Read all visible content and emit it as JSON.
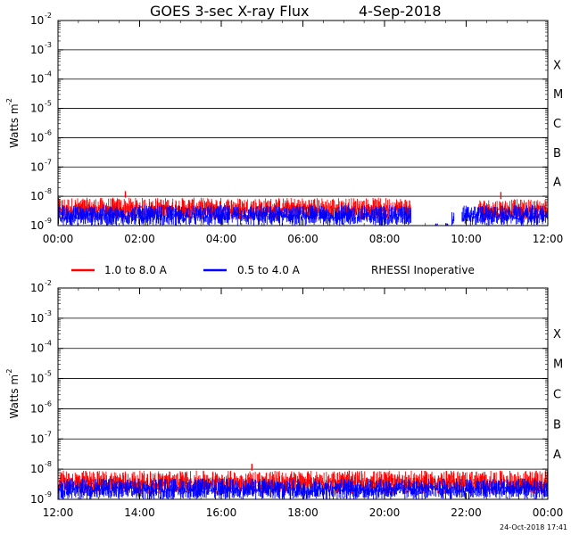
{
  "title": "GOES 3-sec X-ray Flux",
  "date": "4-Sep-2018",
  "timestamp": "24-Oct-2018 17:41",
  "legend": [
    {
      "label": "1.0 to 8.0 A",
      "color": "#ff0000"
    },
    {
      "label": "0.5 to 4.0 A",
      "color": "#0000ff"
    }
  ],
  "status_note": "RHESSI Inoperative",
  "colors": {
    "long_channel": "#ff0000",
    "short_channel": "#0000ff",
    "gridline": "#000000",
    "background": "#ffffff"
  },
  "chart_data": [
    {
      "type": "line",
      "title": "GOES 3-sec X-ray Flux",
      "ylabel": "Watts m^-2",
      "ylabel_base": "Watts m",
      "ylabel_exp": "-2",
      "y_scale": "log",
      "ylim": [
        1e-09,
        0.01
      ],
      "y_ticks": [
        {
          "base": "10",
          "exp": "-2"
        },
        {
          "base": "10",
          "exp": "-3"
        },
        {
          "base": "10",
          "exp": "-4"
        },
        {
          "base": "10",
          "exp": "-5"
        },
        {
          "base": "10",
          "exp": "-6"
        },
        {
          "base": "10",
          "exp": "-7"
        },
        {
          "base": "10",
          "exp": "-8"
        },
        {
          "base": "10",
          "exp": "-9"
        }
      ],
      "x_ticks": [
        "00:00",
        "02:00",
        "04:00",
        "06:00",
        "08:00",
        "10:00",
        "12:00"
      ],
      "xlim_hours": [
        0,
        12
      ],
      "flare_classes": [
        "X",
        "M",
        "C",
        "B",
        "A"
      ],
      "grid": "horizontal gridlines at each decade",
      "series": [
        {
          "name": "1.0 to 8.0 A",
          "color": "#ff0000",
          "segments": [
            {
              "start_hour": 0.0,
              "end_hour": 8.65,
              "low": 1.6e-09,
              "high": 9e-09,
              "peak_hour": 1.65,
              "peak": 1.5e-08
            },
            {
              "start_hour": 10.3,
              "end_hour": 12.0,
              "low": 1.5e-09,
              "high": 8e-09,
              "peak_hour": 10.85,
              "peak": 1.4e-08
            }
          ]
        },
        {
          "name": "0.5 to 4.0 A",
          "color": "#0000ff",
          "segments": [
            {
              "start_hour": 0.0,
              "end_hour": 8.65,
              "low": 1e-09,
              "high": 5e-09
            },
            {
              "start_hour": 9.25,
              "end_hour": 9.3,
              "low": 1e-09,
              "high": 1.2e-09
            },
            {
              "start_hour": 9.5,
              "end_hour": 9.55,
              "low": 1e-09,
              "high": 1.3e-09
            },
            {
              "start_hour": 9.65,
              "end_hour": 9.7,
              "low": 1e-09,
              "high": 3e-09
            },
            {
              "start_hour": 9.9,
              "end_hour": 12.0,
              "low": 1e-09,
              "high": 5e-09
            }
          ]
        }
      ]
    },
    {
      "type": "line",
      "ylabel": "Watts m^-2",
      "ylabel_base": "Watts m",
      "ylabel_exp": "-2",
      "y_scale": "log",
      "ylim": [
        1e-09,
        0.01
      ],
      "y_ticks": [
        {
          "base": "10",
          "exp": "-2"
        },
        {
          "base": "10",
          "exp": "-3"
        },
        {
          "base": "10",
          "exp": "-4"
        },
        {
          "base": "10",
          "exp": "-5"
        },
        {
          "base": "10",
          "exp": "-6"
        },
        {
          "base": "10",
          "exp": "-7"
        },
        {
          "base": "10",
          "exp": "-8"
        },
        {
          "base": "10",
          "exp": "-9"
        }
      ],
      "x_ticks": [
        "12:00",
        "14:00",
        "16:00",
        "18:00",
        "20:00",
        "22:00",
        "00:00"
      ],
      "xlim_hours": [
        12,
        24
      ],
      "flare_classes": [
        "X",
        "M",
        "C",
        "B",
        "A"
      ],
      "grid": "horizontal gridlines at each decade",
      "series": [
        {
          "name": "1.0 to 8.0 A",
          "color": "#ff0000",
          "segments": [
            {
              "start_hour": 12.0,
              "end_hour": 24.0,
              "low": 1.5e-09,
              "high": 9e-09,
              "peak_hour": 16.75,
              "peak": 1.5e-08
            }
          ]
        },
        {
          "name": "0.5 to 4.0 A",
          "color": "#0000ff",
          "segments": [
            {
              "start_hour": 12.0,
              "end_hour": 24.0,
              "low": 1e-09,
              "high": 5e-09
            }
          ]
        }
      ]
    }
  ]
}
